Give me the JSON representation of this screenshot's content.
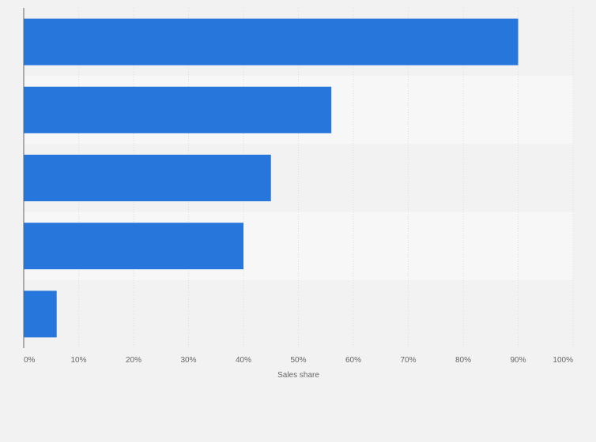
{
  "chart_data": {
    "type": "bar",
    "orientation": "horizontal",
    "categories": [
      "",
      "",
      "",
      "",
      ""
    ],
    "values": [
      90,
      56,
      45,
      40,
      6
    ],
    "xlabel": "Sales share",
    "ylabel": "",
    "xlim": [
      0,
      100
    ],
    "x_ticks": [
      "0%",
      "10%",
      "20%",
      "30%",
      "40%",
      "50%",
      "60%",
      "70%",
      "80%",
      "90%",
      "100%"
    ],
    "grid": true,
    "legend": "none",
    "colors": {
      "bar": "#2776dc",
      "background": "#f2f2f2",
      "band_light": "#f7f7f7",
      "band_dark": "#f2f2f2",
      "grid": "#dddddd",
      "axis": "#666666"
    }
  }
}
